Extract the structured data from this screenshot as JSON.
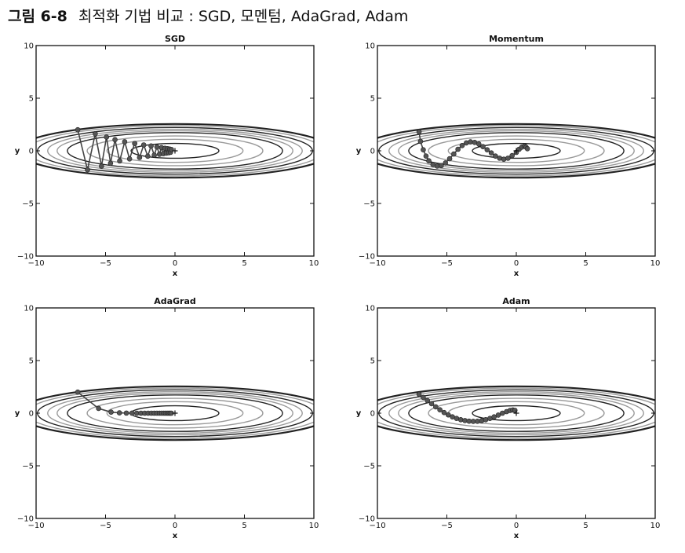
{
  "figure": {
    "number": "그림 6-8",
    "caption": "최적화 기법 비교 : SGD, 모멘텀, AdaGrad, Adam"
  },
  "colors": {
    "axes": "#111111",
    "contour_dark": "#222222",
    "contour_light": "#9a9a9a",
    "path": "#444444",
    "marker": "#555555"
  },
  "chart_data": [
    {
      "type": "line",
      "title": "SGD",
      "xlabel": "x",
      "ylabel": "y",
      "xlim": [
        -10,
        10
      ],
      "ylim": [
        -10,
        10
      ],
      "xticks": [
        -10,
        -5,
        0,
        5,
        10
      ],
      "yticks": [
        -10,
        -5,
        0,
        5,
        10
      ],
      "xticklabels": [
        "−10",
        "−5",
        "0",
        "5",
        "10"
      ],
      "yticklabels": [
        "−10",
        "−5",
        "0",
        "5",
        "10"
      ],
      "contour": "f(x,y) = x^2/20 + y^2",
      "minimum": [
        0,
        0
      ],
      "x": [
        -7.0,
        -6.3,
        -5.74,
        -5.29,
        -4.93,
        -4.64,
        -4.32,
        -3.98,
        -3.62,
        -3.27,
        -2.9,
        -2.55,
        -2.25,
        -1.96,
        -1.72,
        -1.49,
        -1.3,
        -1.12,
        -0.97,
        -0.84,
        -0.72,
        -0.62,
        -0.53,
        -0.45,
        -0.38,
        -0.32,
        -0.26
      ],
      "y": [
        2.0,
        -1.8,
        1.62,
        -1.46,
        1.31,
        -1.18,
        1.06,
        -0.96,
        0.86,
        -0.77,
        0.7,
        -0.63,
        0.56,
        -0.51,
        0.46,
        -0.41,
        0.37,
        -0.33,
        0.3,
        -0.27,
        0.24,
        -0.22,
        0.2,
        -0.18,
        0.16,
        -0.14,
        0.13
      ]
    },
    {
      "type": "line",
      "title": "Momentum",
      "xlabel": "x",
      "ylabel": "y",
      "xlim": [
        -10,
        10
      ],
      "ylim": [
        -10,
        10
      ],
      "xticks": [
        -10,
        -5,
        0,
        5,
        10
      ],
      "yticks": [
        -10,
        -5,
        0,
        5,
        10
      ],
      "xticklabels": [
        "−10",
        "−5",
        "0",
        "5",
        "10"
      ],
      "yticklabels": [
        "−10",
        "−5",
        "0",
        "5",
        "10"
      ],
      "contour": "f(x,y) = x^2/20 + y^2",
      "minimum": [
        0,
        0
      ],
      "x": [
        -7.0,
        -6.9,
        -6.7,
        -6.5,
        -6.3,
        -6.0,
        -5.7,
        -5.4,
        -5.1,
        -4.8,
        -4.5,
        -4.2,
        -3.9,
        -3.6,
        -3.3,
        -3.0,
        -2.7,
        -2.4,
        -2.1,
        -1.8,
        -1.5,
        -1.2,
        -0.9,
        -0.6,
        -0.3,
        0.0,
        0.2,
        0.4,
        0.6,
        0.7,
        0.8
      ],
      "y": [
        1.8,
        0.9,
        0.1,
        -0.5,
        -0.95,
        -1.3,
        -1.45,
        -1.4,
        -1.15,
        -0.75,
        -0.3,
        0.15,
        0.5,
        0.75,
        0.85,
        0.8,
        0.65,
        0.4,
        0.1,
        -0.2,
        -0.5,
        -0.7,
        -0.8,
        -0.7,
        -0.45,
        -0.15,
        0.15,
        0.35,
        0.45,
        0.35,
        0.2
      ]
    },
    {
      "type": "line",
      "title": "AdaGrad",
      "xlabel": "x",
      "ylabel": "y",
      "xlim": [
        -10,
        10
      ],
      "ylim": [
        -10,
        10
      ],
      "xticks": [
        -10,
        -5,
        0,
        5,
        10
      ],
      "yticks": [
        -10,
        -5,
        0,
        5,
        10
      ],
      "xticklabels": [
        "−10",
        "−5",
        "0",
        "5",
        "10"
      ],
      "yticklabels": [
        "−10",
        "−5",
        "0",
        "5",
        "10"
      ],
      "contour": "f(x,y) = x^2/20 + y^2",
      "minimum": [
        0,
        0
      ],
      "x": [
        -7.0,
        -5.5,
        -4.6,
        -4.0,
        -3.5,
        -3.1,
        -2.75,
        -2.45,
        -2.18,
        -1.93,
        -1.7,
        -1.49,
        -1.3,
        -1.12,
        -0.96,
        -0.81,
        -0.68,
        -0.56,
        -0.45,
        -0.35,
        -0.26
      ],
      "y": [
        2.0,
        0.45,
        0.1,
        0.03,
        0.01,
        0.005,
        0,
        0,
        0,
        0,
        0,
        0,
        0,
        0,
        0,
        0,
        0,
        0,
        0,
        0,
        0
      ]
    },
    {
      "type": "line",
      "title": "Adam",
      "xlabel": "x",
      "ylabel": "y",
      "xlim": [
        -10,
        10
      ],
      "ylim": [
        -10,
        10
      ],
      "xticks": [
        -10,
        -5,
        0,
        5,
        10
      ],
      "yticks": [
        -10,
        -5,
        0,
        5,
        10
      ],
      "xticklabels": [
        "−10",
        "−5",
        "0",
        "5",
        "10"
      ],
      "yticklabels": [
        "−10",
        "−5",
        "0",
        "5",
        "10"
      ],
      "contour": "f(x,y) = x^2/20 + y^2",
      "minimum": [
        0,
        0
      ],
      "x": [
        -7.0,
        -6.7,
        -6.4,
        -6.1,
        -5.8,
        -5.5,
        -5.2,
        -4.9,
        -4.6,
        -4.3,
        -4.0,
        -3.7,
        -3.4,
        -3.1,
        -2.8,
        -2.5,
        -2.2,
        -1.9,
        -1.6,
        -1.3,
        -1.0,
        -0.7,
        -0.45,
        -0.25,
        -0.1
      ],
      "y": [
        1.8,
        1.5,
        1.2,
        0.9,
        0.6,
        0.32,
        0.06,
        -0.16,
        -0.35,
        -0.5,
        -0.62,
        -0.7,
        -0.76,
        -0.78,
        -0.77,
        -0.72,
        -0.62,
        -0.5,
        -0.35,
        -0.18,
        0.0,
        0.15,
        0.26,
        0.3,
        0.27
      ]
    }
  ]
}
